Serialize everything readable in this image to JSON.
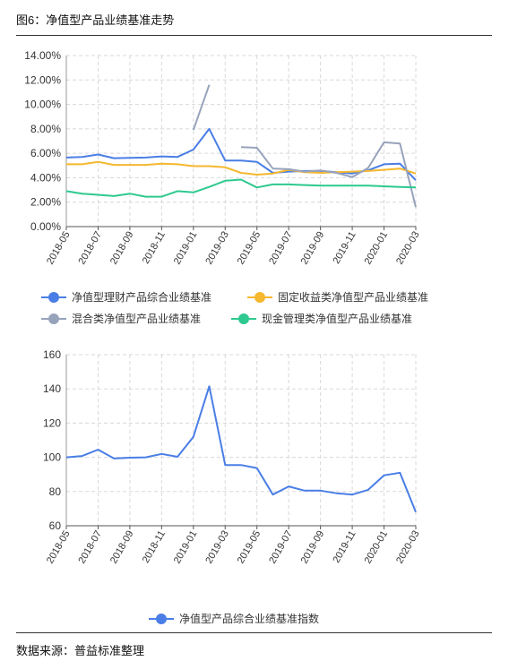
{
  "header": {
    "title": "图6：净值型产品业绩基准走势"
  },
  "footer": {
    "source": "数据来源：普益标准整理"
  },
  "chart_data": [
    {
      "type": "line",
      "x": [
        "2018-05",
        "2018-06",
        "2018-07",
        "2018-08",
        "2018-09",
        "2018-10",
        "2018-11",
        "2018-12",
        "2019-01",
        "2019-02",
        "2019-03",
        "2019-04",
        "2019-05",
        "2019-06",
        "2019-07",
        "2019-08",
        "2019-09",
        "2019-10",
        "2019-11",
        "2019-12",
        "2020-01",
        "2020-02",
        "2020-03"
      ],
      "xticks": [
        "2018-05",
        "2018-07",
        "2018-09",
        "2018-11",
        "2019-01",
        "2019-03",
        "2019-05",
        "2019-07",
        "2019-09",
        "2019-11",
        "2020-01",
        "2020-03"
      ],
      "yticks": [
        "0.00%",
        "2.00%",
        "4.00%",
        "6.00%",
        "8.00%",
        "10.00%",
        "12.00%",
        "14.00%"
      ],
      "ylim": [
        0,
        14
      ],
      "grid": true,
      "legend_position": "bottom",
      "series": [
        {
          "name": "净值型理财产品综合业绩基准",
          "color": "#4a7ee6",
          "values": [
            5.65,
            5.7,
            5.9,
            5.6,
            5.62,
            5.65,
            5.75,
            5.7,
            6.3,
            8.0,
            5.4,
            5.4,
            5.3,
            4.4,
            4.5,
            4.55,
            4.55,
            4.45,
            4.35,
            4.6,
            5.1,
            5.15,
            3.8
          ]
        },
        {
          "name": "固定收益类净值型产品业绩基准",
          "color": "#f5b82e",
          "values": [
            5.1,
            5.1,
            5.3,
            5.05,
            5.05,
            5.05,
            5.15,
            5.1,
            4.95,
            4.95,
            4.85,
            4.4,
            4.25,
            4.35,
            4.65,
            4.45,
            4.4,
            4.45,
            4.5,
            4.55,
            4.65,
            4.75,
            4.35
          ]
        },
        {
          "name": "混合类净值型产品业绩基准",
          "color": "#97a3bb",
          "values": [
            null,
            null,
            null,
            null,
            null,
            null,
            null,
            null,
            7.9,
            11.6,
            null,
            6.5,
            6.45,
            4.75,
            4.7,
            4.5,
            4.6,
            4.4,
            4.05,
            4.8,
            6.9,
            6.8,
            1.6
          ]
        },
        {
          "name": "现金管理类净值型产品业绩基准",
          "color": "#2dc98f",
          "values": [
            2.9,
            2.7,
            2.6,
            2.5,
            2.7,
            2.45,
            2.45,
            2.9,
            2.8,
            3.25,
            3.75,
            3.85,
            3.2,
            3.45,
            3.45,
            3.4,
            3.35,
            3.35,
            3.35,
            3.35,
            3.3,
            3.25,
            3.2
          ]
        }
      ]
    },
    {
      "type": "line",
      "x": [
        "2018-05",
        "2018-06",
        "2018-07",
        "2018-08",
        "2018-09",
        "2018-10",
        "2018-11",
        "2018-12",
        "2019-01",
        "2019-02",
        "2019-03",
        "2019-04",
        "2019-05",
        "2019-06",
        "2019-07",
        "2019-08",
        "2019-09",
        "2019-10",
        "2019-11",
        "2019-12",
        "2020-01",
        "2020-02",
        "2020-03"
      ],
      "xticks": [
        "2018-05",
        "2018-07",
        "2018-09",
        "2018-11",
        "2019-01",
        "2019-03",
        "2019-05",
        "2019-07",
        "2019-09",
        "2019-11",
        "2020-01",
        "2020-03"
      ],
      "yticks": [
        "60",
        "80",
        "100",
        "120",
        "140",
        "160"
      ],
      "ylim": [
        60,
        160
      ],
      "grid": true,
      "legend_position": "bottom",
      "series": [
        {
          "name": "净值型产品综合业绩基准指数",
          "color": "#4a7ee6",
          "values": [
            100,
            100.8,
            104.5,
            99.3,
            99.8,
            100,
            102,
            100.3,
            112,
            141.5,
            95.5,
            95.5,
            93.7,
            78.2,
            83,
            80.5,
            80.5,
            79,
            78.2,
            81,
            89.5,
            91,
            68
          ]
        }
      ]
    }
  ]
}
